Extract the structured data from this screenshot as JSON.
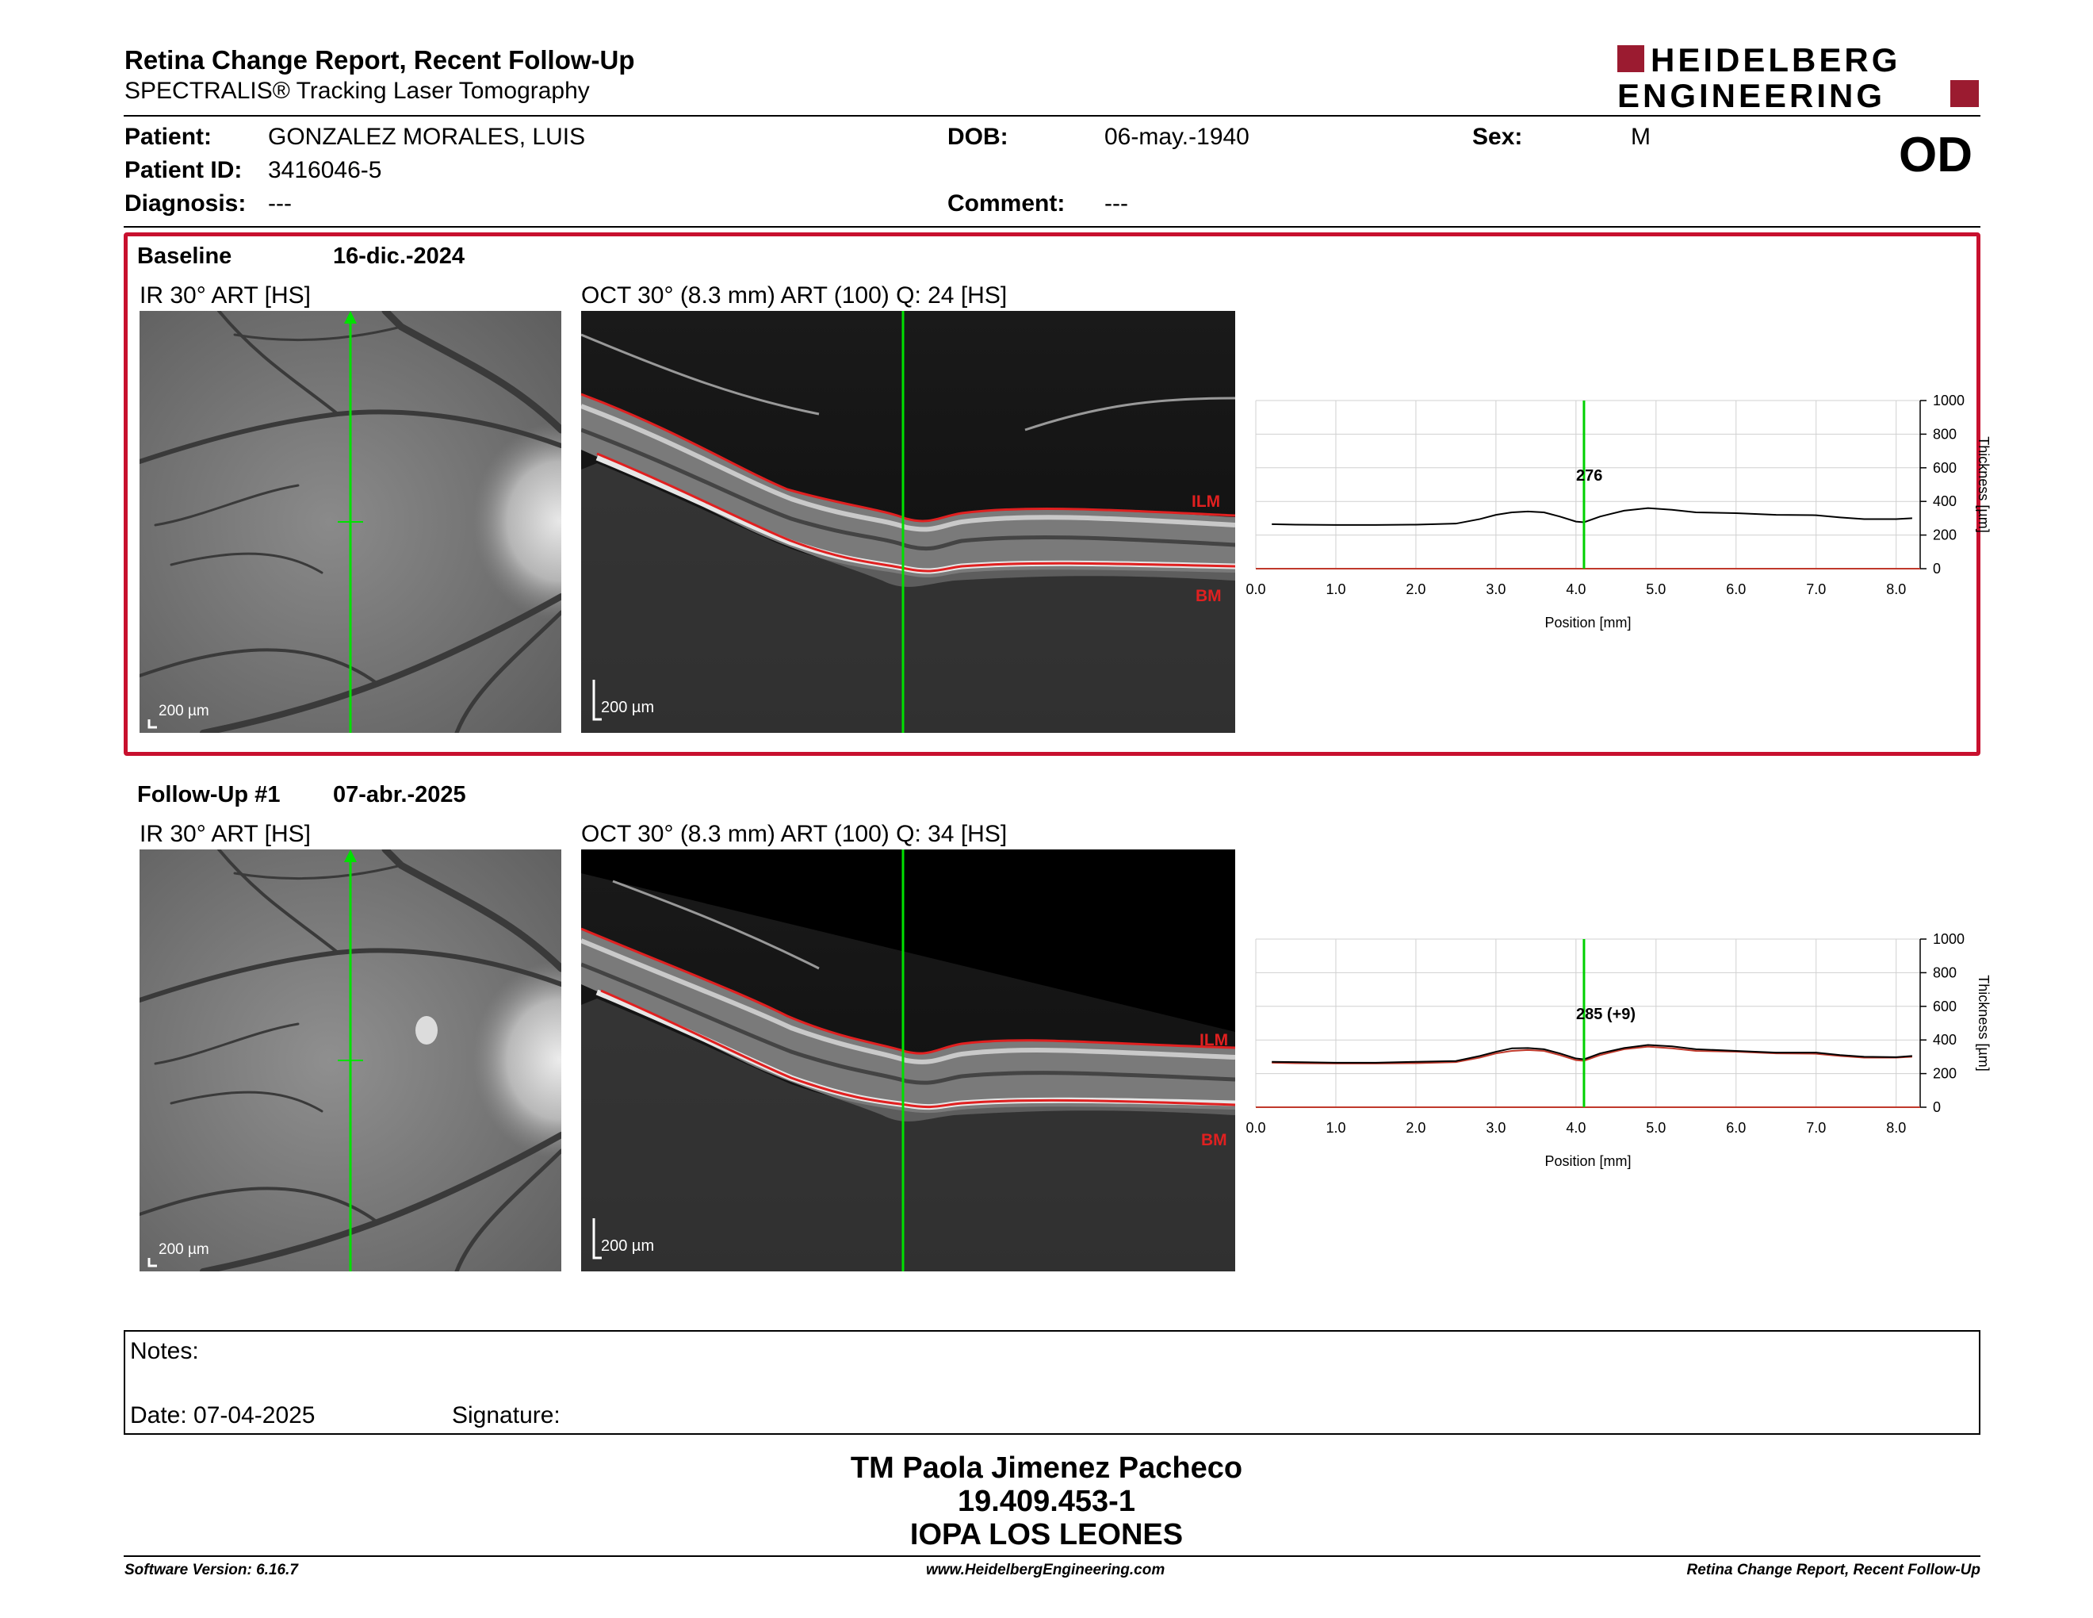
{
  "header": {
    "title": "Retina Change Report, Recent Follow-Up",
    "subtitle": "SPECTRALIS® Tracking Laser Tomography",
    "logo_line1": "HEIDELBERG",
    "logo_line2": "ENGINEERING",
    "eye": "OD"
  },
  "patient": {
    "patient_label": "Patient:",
    "patient_value": "GONZALEZ MORALES, LUIS",
    "id_label": "Patient ID:",
    "id_value": "3416046-5",
    "diagnosis_label": "Diagnosis:",
    "diagnosis_value": "---",
    "dob_label": "DOB:",
    "dob_value": "06-may.-1940",
    "comment_label": "Comment:",
    "comment_value": "---",
    "sex_label": "Sex:",
    "sex_value": "M"
  },
  "exams": [
    {
      "name": "Baseline",
      "date": "16-dic.-2024",
      "ir_label": "IR 30° ART [HS]",
      "oct_label": "OCT 30° (8.3 mm) ART (100) Q: 24 [HS]",
      "scale_bar": "200 µm",
      "ilm_label": "ILM",
      "bm_label": "BM",
      "thickness_readout": "276"
    },
    {
      "name": "Follow-Up #1",
      "date": "07-abr.-2025",
      "ir_label": "IR 30° ART [HS]",
      "oct_label": "OCT 30° (8.3 mm) ART (100) Q: 34 [HS]",
      "scale_bar": "200 µm",
      "ilm_label": "ILM",
      "bm_label": "BM",
      "thickness_readout": "285 (+9)"
    }
  ],
  "chart_data": [
    {
      "type": "line",
      "xlabel": "Position [mm]",
      "ylabel": "Thickness [µm]",
      "xlim": [
        0,
        8.3
      ],
      "ylim": [
        0,
        1000
      ],
      "x_ticks": [
        "0.0",
        "1.0",
        "2.0",
        "3.0",
        "4.0",
        "5.0",
        "6.0",
        "7.0",
        "8.0"
      ],
      "y_ticks": [
        "0",
        "200",
        "400",
        "600",
        "800",
        "1000"
      ],
      "grid": true,
      "cursor_x": 4.1,
      "series": [
        {
          "color": "#000000",
          "x": [
            0.2,
            0.5,
            1.0,
            1.5,
            2.0,
            2.5,
            2.8,
            3.0,
            3.2,
            3.4,
            3.6,
            3.8,
            4.0,
            4.1,
            4.3,
            4.6,
            4.9,
            5.2,
            5.5,
            6.0,
            6.5,
            7.0,
            7.3,
            7.6,
            8.0,
            8.2
          ],
          "y": [
            265,
            262,
            260,
            260,
            262,
            268,
            295,
            320,
            335,
            340,
            335,
            310,
            280,
            276,
            310,
            345,
            360,
            350,
            335,
            330,
            320,
            318,
            305,
            295,
            295,
            300
          ]
        }
      ]
    },
    {
      "type": "line",
      "xlabel": "Position [mm]",
      "ylabel": "Thickness [µm]",
      "xlim": [
        0,
        8.3
      ],
      "ylim": [
        0,
        1000
      ],
      "x_ticks": [
        "0.0",
        "1.0",
        "2.0",
        "3.0",
        "4.0",
        "5.0",
        "6.0",
        "7.0",
        "8.0"
      ],
      "y_ticks": [
        "0",
        "200",
        "400",
        "600",
        "800",
        "1000"
      ],
      "grid": true,
      "cursor_x": 4.1,
      "series": [
        {
          "color": "#000000",
          "x": [
            0.2,
            0.5,
            1.0,
            1.5,
            2.0,
            2.5,
            2.8,
            3.0,
            3.2,
            3.4,
            3.6,
            3.8,
            4.0,
            4.1,
            4.3,
            4.6,
            4.9,
            5.2,
            5.5,
            6.0,
            6.5,
            7.0,
            7.3,
            7.6,
            8.0,
            8.2
          ],
          "y": [
            270,
            268,
            265,
            265,
            270,
            275,
            305,
            330,
            350,
            352,
            345,
            320,
            290,
            285,
            320,
            352,
            370,
            362,
            345,
            335,
            325,
            325,
            310,
            300,
            298,
            305
          ]
        },
        {
          "color": "#c0392b",
          "x": [
            0.2,
            0.5,
            1.0,
            1.5,
            2.0,
            2.5,
            2.8,
            3.0,
            3.2,
            3.4,
            3.6,
            3.8,
            4.0,
            4.1,
            4.3,
            4.6,
            4.9,
            5.2,
            5.5,
            6.0,
            6.5,
            7.0,
            7.3,
            7.6,
            8.0,
            8.2
          ],
          "y": [
            265,
            262,
            260,
            260,
            262,
            268,
            295,
            320,
            335,
            340,
            335,
            310,
            280,
            276,
            310,
            345,
            360,
            350,
            335,
            330,
            320,
            318,
            305,
            295,
            295,
            300
          ]
        }
      ]
    }
  ],
  "notes": {
    "notes_label": "Notes:",
    "date_label": "Date: 07-04-2025",
    "signature_label": "Signature:"
  },
  "signature": {
    "name": "TM Paola Jimenez Pacheco",
    "rut": "19.409.453-1",
    "institution": "IOPA LOS LEONES"
  },
  "footer": {
    "software": "Software Version: 6.16.7",
    "website": "www.HeidelbergEngineering.com",
    "report": "Retina Change Report, Recent Follow-Up"
  }
}
